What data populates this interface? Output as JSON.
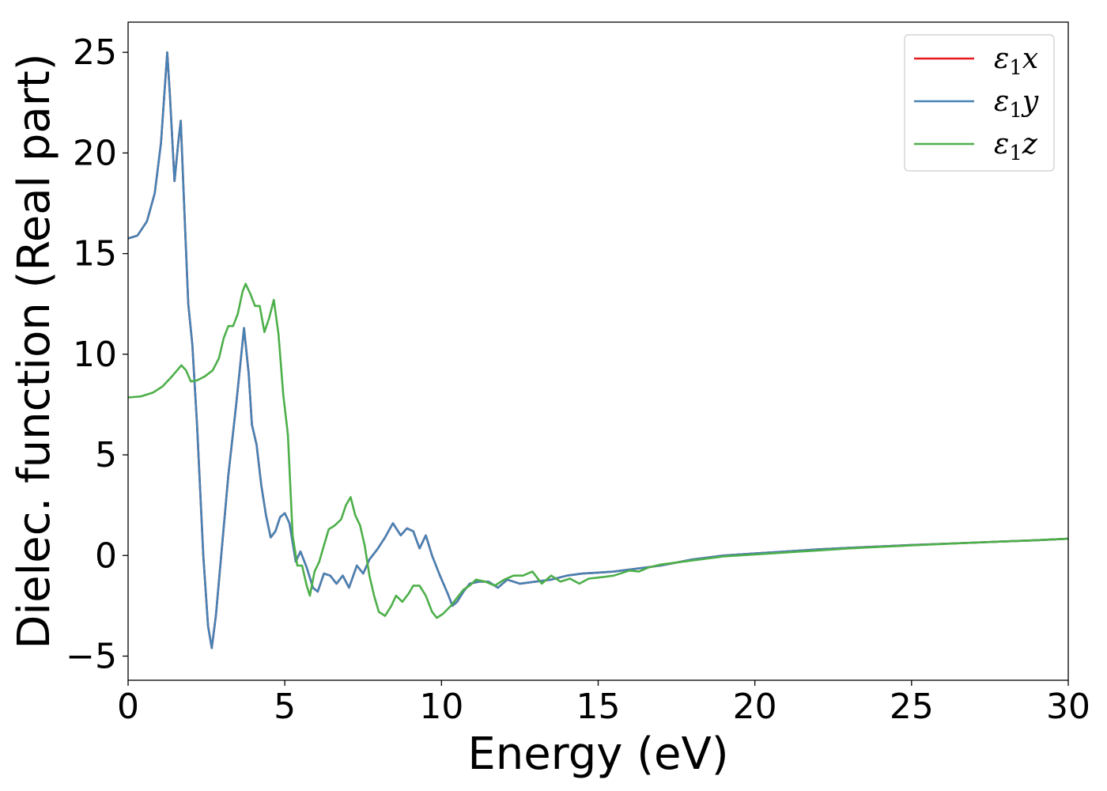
{
  "chart_data": {
    "type": "line",
    "title": "",
    "xlabel": "Energy (eV)",
    "ylabel": "Dielec. function (Real part)",
    "xlim": [
      0,
      30
    ],
    "ylim": [
      -6.2,
      26.5
    ],
    "xticks": [
      0,
      5,
      10,
      15,
      20,
      25,
      30
    ],
    "xtick_labels": [
      "0",
      "5",
      "10",
      "15",
      "20",
      "25",
      "30"
    ],
    "yticks": [
      -5,
      0,
      5,
      10,
      15,
      20,
      25
    ],
    "ytick_labels": [
      "−5",
      "0",
      "5",
      "10",
      "15",
      "20",
      "25"
    ],
    "grid": false,
    "legend_position": "top-right",
    "series": [
      {
        "name": "ε",
        "sub": "1",
        "axis_letter": "x",
        "color": "#e41a1c",
        "points": [
          [
            0,
            15.75
          ],
          [
            0.3,
            15.9
          ],
          [
            0.6,
            16.6
          ],
          [
            0.85,
            18.0
          ],
          [
            1.05,
            20.5
          ],
          [
            1.25,
            25.0
          ],
          [
            1.33,
            23.0
          ],
          [
            1.48,
            18.6
          ],
          [
            1.6,
            20.5
          ],
          [
            1.68,
            21.6
          ],
          [
            1.8,
            17.0
          ],
          [
            1.92,
            12.5
          ],
          [
            2.05,
            10.5
          ],
          [
            2.2,
            6.5
          ],
          [
            2.4,
            0.0
          ],
          [
            2.55,
            -3.5
          ],
          [
            2.67,
            -4.6
          ],
          [
            2.8,
            -3.0
          ],
          [
            3.0,
            0.5
          ],
          [
            3.2,
            4.0
          ],
          [
            3.45,
            7.5
          ],
          [
            3.7,
            11.3
          ],
          [
            3.85,
            9.0
          ],
          [
            3.95,
            6.5
          ],
          [
            4.1,
            5.5
          ],
          [
            4.25,
            3.5
          ],
          [
            4.4,
            2.0
          ],
          [
            4.55,
            0.9
          ],
          [
            4.7,
            1.2
          ],
          [
            4.85,
            1.9
          ],
          [
            5.0,
            2.1
          ],
          [
            5.15,
            1.6
          ],
          [
            5.35,
            -0.3
          ],
          [
            5.5,
            0.2
          ],
          [
            5.7,
            -0.6
          ],
          [
            5.9,
            -1.6
          ],
          [
            6.05,
            -1.8
          ],
          [
            6.25,
            -0.9
          ],
          [
            6.45,
            -1.0
          ],
          [
            6.65,
            -1.4
          ],
          [
            6.85,
            -1.0
          ],
          [
            7.05,
            -1.6
          ],
          [
            7.3,
            -0.5
          ],
          [
            7.5,
            -0.9
          ],
          [
            7.7,
            -0.2
          ],
          [
            7.95,
            0.3
          ],
          [
            8.2,
            0.9
          ],
          [
            8.45,
            1.6
          ],
          [
            8.7,
            1.0
          ],
          [
            8.9,
            1.35
          ],
          [
            9.1,
            1.2
          ],
          [
            9.3,
            0.35
          ],
          [
            9.5,
            1.0
          ],
          [
            9.7,
            0.0
          ],
          [
            9.95,
            -1.0
          ],
          [
            10.2,
            -1.9
          ],
          [
            10.35,
            -2.5
          ],
          [
            10.5,
            -2.3
          ],
          [
            10.7,
            -1.8
          ],
          [
            10.9,
            -1.4
          ],
          [
            11.2,
            -1.3
          ],
          [
            11.5,
            -1.3
          ],
          [
            11.8,
            -1.6
          ],
          [
            12.1,
            -1.2
          ],
          [
            12.5,
            -1.4
          ],
          [
            13.0,
            -1.3
          ],
          [
            13.5,
            -1.2
          ],
          [
            14.0,
            -1.0
          ],
          [
            14.5,
            -0.9
          ],
          [
            15.0,
            -0.85
          ],
          [
            15.5,
            -0.8
          ],
          [
            16.0,
            -0.7
          ],
          [
            16.5,
            -0.6
          ],
          [
            17.0,
            -0.5
          ],
          [
            18.0,
            -0.2
          ],
          [
            19.0,
            0.0
          ],
          [
            20.0,
            0.1
          ],
          [
            21.0,
            0.2
          ],
          [
            22.0,
            0.3
          ],
          [
            23.0,
            0.38
          ],
          [
            24.0,
            0.45
          ],
          [
            25.0,
            0.52
          ],
          [
            26.0,
            0.58
          ],
          [
            27.0,
            0.64
          ],
          [
            28.0,
            0.7
          ],
          [
            29.0,
            0.76
          ],
          [
            30.0,
            0.83
          ]
        ]
      },
      {
        "name": "ε",
        "sub": "1",
        "axis_letter": "y",
        "color": "#4682b4",
        "points": [
          [
            0,
            15.75
          ],
          [
            0.3,
            15.9
          ],
          [
            0.6,
            16.6
          ],
          [
            0.85,
            18.0
          ],
          [
            1.05,
            20.5
          ],
          [
            1.25,
            25.0
          ],
          [
            1.33,
            23.0
          ],
          [
            1.48,
            18.6
          ],
          [
            1.6,
            20.5
          ],
          [
            1.68,
            21.6
          ],
          [
            1.8,
            17.0
          ],
          [
            1.92,
            12.5
          ],
          [
            2.05,
            10.5
          ],
          [
            2.2,
            6.5
          ],
          [
            2.4,
            0.0
          ],
          [
            2.55,
            -3.5
          ],
          [
            2.67,
            -4.6
          ],
          [
            2.8,
            -3.0
          ],
          [
            3.0,
            0.5
          ],
          [
            3.2,
            4.0
          ],
          [
            3.45,
            7.5
          ],
          [
            3.7,
            11.3
          ],
          [
            3.85,
            9.0
          ],
          [
            3.95,
            6.5
          ],
          [
            4.1,
            5.5
          ],
          [
            4.25,
            3.5
          ],
          [
            4.4,
            2.0
          ],
          [
            4.55,
            0.9
          ],
          [
            4.7,
            1.2
          ],
          [
            4.85,
            1.9
          ],
          [
            5.0,
            2.1
          ],
          [
            5.15,
            1.6
          ],
          [
            5.35,
            -0.3
          ],
          [
            5.5,
            0.2
          ],
          [
            5.7,
            -0.6
          ],
          [
            5.9,
            -1.6
          ],
          [
            6.05,
            -1.8
          ],
          [
            6.25,
            -0.9
          ],
          [
            6.45,
            -1.0
          ],
          [
            6.65,
            -1.4
          ],
          [
            6.85,
            -1.0
          ],
          [
            7.05,
            -1.6
          ],
          [
            7.3,
            -0.5
          ],
          [
            7.5,
            -0.9
          ],
          [
            7.7,
            -0.2
          ],
          [
            7.95,
            0.3
          ],
          [
            8.2,
            0.9
          ],
          [
            8.45,
            1.6
          ],
          [
            8.7,
            1.0
          ],
          [
            8.9,
            1.35
          ],
          [
            9.1,
            1.2
          ],
          [
            9.3,
            0.35
          ],
          [
            9.5,
            1.0
          ],
          [
            9.7,
            0.0
          ],
          [
            9.95,
            -1.0
          ],
          [
            10.2,
            -1.9
          ],
          [
            10.35,
            -2.5
          ],
          [
            10.5,
            -2.3
          ],
          [
            10.7,
            -1.8
          ],
          [
            10.9,
            -1.4
          ],
          [
            11.2,
            -1.3
          ],
          [
            11.5,
            -1.3
          ],
          [
            11.8,
            -1.6
          ],
          [
            12.1,
            -1.2
          ],
          [
            12.5,
            -1.4
          ],
          [
            13.0,
            -1.3
          ],
          [
            13.5,
            -1.2
          ],
          [
            14.0,
            -1.0
          ],
          [
            14.5,
            -0.9
          ],
          [
            15.0,
            -0.85
          ],
          [
            15.5,
            -0.8
          ],
          [
            16.0,
            -0.7
          ],
          [
            16.5,
            -0.6
          ],
          [
            17.0,
            -0.5
          ],
          [
            18.0,
            -0.2
          ],
          [
            19.0,
            0.0
          ],
          [
            20.0,
            0.1
          ],
          [
            21.0,
            0.2
          ],
          [
            22.0,
            0.3
          ],
          [
            23.0,
            0.38
          ],
          [
            24.0,
            0.45
          ],
          [
            25.0,
            0.52
          ],
          [
            26.0,
            0.58
          ],
          [
            27.0,
            0.64
          ],
          [
            28.0,
            0.7
          ],
          [
            29.0,
            0.76
          ],
          [
            30.0,
            0.83
          ]
        ]
      },
      {
        "name": "ε",
        "sub": "1",
        "axis_letter": "z",
        "color": "#4daf4a",
        "points": [
          [
            0,
            7.85
          ],
          [
            0.4,
            7.9
          ],
          [
            0.8,
            8.1
          ],
          [
            1.1,
            8.4
          ],
          [
            1.4,
            8.9
          ],
          [
            1.7,
            9.45
          ],
          [
            1.85,
            9.2
          ],
          [
            2.0,
            8.65
          ],
          [
            2.2,
            8.7
          ],
          [
            2.45,
            8.9
          ],
          [
            2.7,
            9.2
          ],
          [
            2.9,
            9.8
          ],
          [
            3.05,
            10.8
          ],
          [
            3.2,
            11.4
          ],
          [
            3.35,
            11.4
          ],
          [
            3.5,
            12.0
          ],
          [
            3.65,
            13.1
          ],
          [
            3.75,
            13.5
          ],
          [
            3.9,
            13.0
          ],
          [
            4.05,
            12.4
          ],
          [
            4.2,
            12.4
          ],
          [
            4.35,
            11.1
          ],
          [
            4.5,
            11.8
          ],
          [
            4.65,
            12.7
          ],
          [
            4.8,
            11.0
          ],
          [
            4.95,
            8.0
          ],
          [
            5.1,
            6.0
          ],
          [
            5.25,
            1.0
          ],
          [
            5.4,
            -0.5
          ],
          [
            5.55,
            -0.5
          ],
          [
            5.7,
            -1.5
          ],
          [
            5.8,
            -2.0
          ],
          [
            5.95,
            -0.8
          ],
          [
            6.1,
            -0.3
          ],
          [
            6.25,
            0.5
          ],
          [
            6.4,
            1.3
          ],
          [
            6.6,
            1.5
          ],
          [
            6.8,
            1.8
          ],
          [
            6.95,
            2.5
          ],
          [
            7.1,
            2.9
          ],
          [
            7.25,
            2.0
          ],
          [
            7.4,
            1.5
          ],
          [
            7.55,
            0.5
          ],
          [
            7.7,
            -1.0
          ],
          [
            7.85,
            -2.0
          ],
          [
            8.0,
            -2.8
          ],
          [
            8.2,
            -3.0
          ],
          [
            8.4,
            -2.5
          ],
          [
            8.55,
            -2.0
          ],
          [
            8.75,
            -2.3
          ],
          [
            8.95,
            -1.9
          ],
          [
            9.1,
            -1.5
          ],
          [
            9.3,
            -1.5
          ],
          [
            9.5,
            -2.0
          ],
          [
            9.7,
            -2.8
          ],
          [
            9.85,
            -3.1
          ],
          [
            10.05,
            -2.9
          ],
          [
            10.3,
            -2.5
          ],
          [
            10.5,
            -2.1
          ],
          [
            10.7,
            -1.7
          ],
          [
            10.9,
            -1.5
          ],
          [
            11.1,
            -1.2
          ],
          [
            11.4,
            -1.3
          ],
          [
            11.7,
            -1.5
          ],
          [
            12.0,
            -1.2
          ],
          [
            12.3,
            -1.0
          ],
          [
            12.6,
            -1.0
          ],
          [
            12.9,
            -0.8
          ],
          [
            13.2,
            -1.4
          ],
          [
            13.5,
            -1.0
          ],
          [
            13.8,
            -1.3
          ],
          [
            14.1,
            -1.15
          ],
          [
            14.4,
            -1.4
          ],
          [
            14.7,
            -1.15
          ],
          [
            15.0,
            -1.1
          ],
          [
            15.5,
            -1.0
          ],
          [
            16.0,
            -0.75
          ],
          [
            16.3,
            -0.8
          ],
          [
            16.6,
            -0.6
          ],
          [
            17.0,
            -0.45
          ],
          [
            18.0,
            -0.25
          ],
          [
            19.0,
            -0.05
          ],
          [
            20.0,
            0.05
          ],
          [
            21.0,
            0.15
          ],
          [
            22.0,
            0.25
          ],
          [
            23.0,
            0.35
          ],
          [
            24.0,
            0.43
          ],
          [
            25.0,
            0.5
          ],
          [
            26.0,
            0.57
          ],
          [
            27.0,
            0.64
          ],
          [
            28.0,
            0.7
          ],
          [
            29.0,
            0.76
          ],
          [
            30.0,
            0.83
          ]
        ]
      }
    ]
  }
}
